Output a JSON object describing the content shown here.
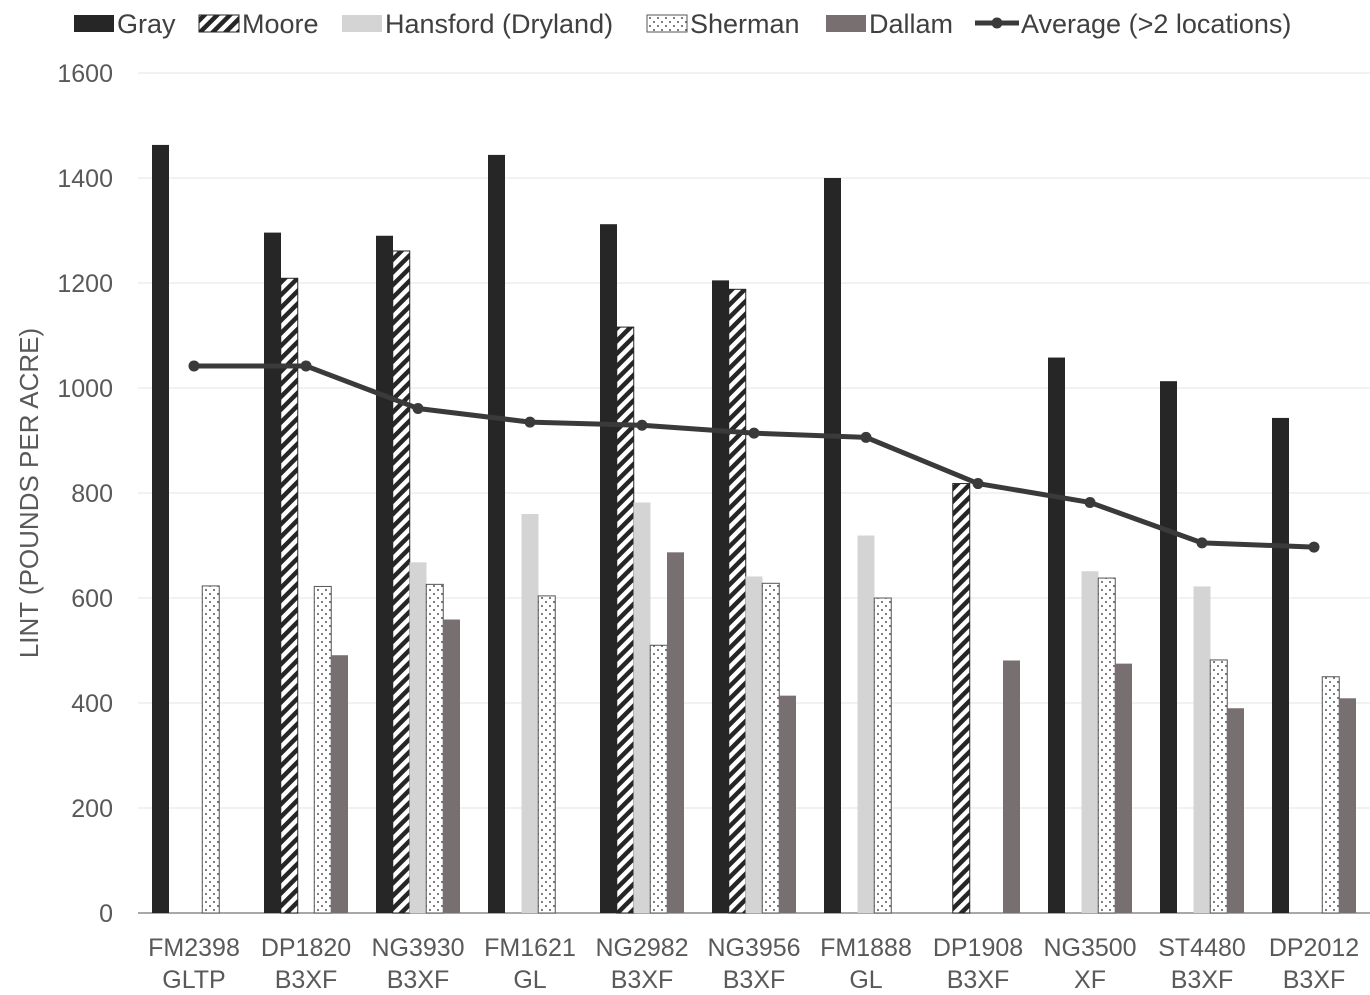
{
  "chart_data": {
    "type": "bar",
    "title": "",
    "xlabel": "",
    "ylabel": "LINT (POUNDS PER ACRE)",
    "ylim": [
      0,
      1600
    ],
    "yticks": [
      0,
      200,
      400,
      600,
      800,
      1000,
      1200,
      1400,
      1600
    ],
    "grid": true,
    "legend_position": "top",
    "categories": [
      [
        "FM2398",
        "GLTP"
      ],
      [
        "DP1820",
        "B3XF"
      ],
      [
        "NG3930",
        "B3XF"
      ],
      [
        "FM1621",
        "GL"
      ],
      [
        "NG2982",
        "B3XF"
      ],
      [
        "NG3956",
        "B3XF"
      ],
      [
        "FM1888",
        "GL"
      ],
      [
        "DP1908",
        "B3XF"
      ],
      [
        "NG3500",
        "XF"
      ],
      [
        "ST4480",
        "B3XF"
      ],
      [
        "DP2012",
        "B3XF"
      ]
    ],
    "series": [
      {
        "name": "Gray",
        "type": "bar",
        "style": "solid-dark",
        "color": "#262626",
        "values": [
          1463,
          1296,
          1290,
          1444,
          1312,
          1205,
          1400,
          null,
          1058,
          1013,
          943
        ]
      },
      {
        "name": "Moore",
        "type": "bar",
        "style": "hatched",
        "color": "#262626",
        "values": [
          null,
          1209,
          1261,
          null,
          1116,
          1188,
          null,
          818,
          null,
          null,
          null
        ]
      },
      {
        "name": "Hansford (Dryland)",
        "type": "bar",
        "style": "solid-light",
        "color": "#d4d4d4",
        "values": [
          null,
          null,
          668,
          760,
          782,
          641,
          719,
          null,
          651,
          622,
          null
        ]
      },
      {
        "name": "Sherman",
        "type": "bar",
        "style": "dotted",
        "color": "#808080",
        "values": [
          623,
          622,
          626,
          604,
          510,
          628,
          600,
          null,
          638,
          482,
          450
        ]
      },
      {
        "name": "Dallam",
        "type": "bar",
        "style": "solid-mid",
        "color": "#787070",
        "values": [
          null,
          491,
          559,
          null,
          687,
          414,
          null,
          481,
          475,
          390,
          409
        ]
      },
      {
        "name": "Average (>2 locations)",
        "type": "line",
        "color": "#3a3a3a",
        "values": [
          1042,
          1042,
          961,
          935,
          929,
          914,
          906,
          818,
          782,
          705,
          697
        ]
      }
    ]
  }
}
